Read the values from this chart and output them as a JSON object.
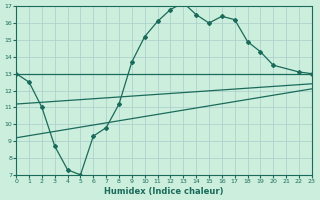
{
  "xlabel": "Humidex (Indice chaleur)",
  "bg_color": "#cceedd",
  "grid_color": "#aacccc",
  "line_color": "#1a6b5a",
  "xlim": [
    0,
    23
  ],
  "ylim": [
    7,
    17
  ],
  "xticks": [
    0,
    1,
    2,
    3,
    4,
    5,
    6,
    7,
    8,
    9,
    10,
    11,
    12,
    13,
    14,
    15,
    16,
    17,
    18,
    19,
    20,
    21,
    22,
    23
  ],
  "yticks": [
    7,
    8,
    9,
    10,
    11,
    12,
    13,
    14,
    15,
    16,
    17
  ],
  "line1_x": [
    0,
    1,
    2,
    3,
    4,
    5,
    6,
    7,
    8,
    9,
    10,
    11,
    12,
    13,
    14,
    15,
    16,
    17,
    18,
    19,
    20,
    22,
    23
  ],
  "line1_y": [
    13.0,
    12.5,
    11.0,
    8.7,
    7.3,
    7.0,
    9.3,
    9.8,
    11.2,
    13.7,
    15.2,
    16.1,
    16.8,
    17.2,
    16.5,
    16.0,
    16.4,
    16.2,
    14.9,
    14.3,
    13.5,
    13.1,
    13.0
  ],
  "line2_x": [
    0,
    23
  ],
  "line2_y": [
    13.0,
    13.0
  ],
  "line3_x": [
    0,
    23
  ],
  "line3_y": [
    11.2,
    12.4
  ],
  "line4_x": [
    0,
    23
  ],
  "line4_y": [
    9.2,
    12.1
  ]
}
